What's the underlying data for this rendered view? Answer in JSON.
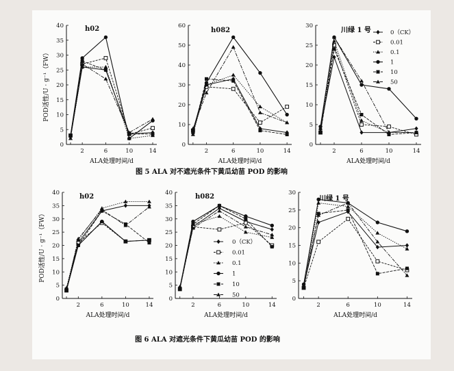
{
  "figures": [
    {
      "caption": "图 5   ALA 对不遮光条件下黄瓜幼苗 POD 的影响",
      "ylabel": "POD活性/U · g⁻¹（FW）",
      "legend_labels": [
        "0（CK）",
        "0.01",
        "0.1",
        "1",
        "10",
        "50"
      ]
    },
    {
      "caption": "图 6   ALA 对遮光条件下黄瓜幼苗 POD 的影响",
      "ylabel": "POD活性/U · g⁻¹（FW）",
      "legend_labels": [
        "0（CK）",
        "0.01",
        "0.1",
        "1",
        "10",
        "50"
      ]
    }
  ],
  "chart_data": [
    {
      "type": "line",
      "figure": 0,
      "title": "h02",
      "xlabel": "ALA处理时间/d",
      "x": [
        0,
        2,
        6,
        10,
        14
      ],
      "ylim": [
        0,
        40
      ],
      "yticks": [
        0,
        5,
        10,
        15,
        20,
        25,
        30,
        35,
        40
      ],
      "series": [
        {
          "name": "0（CK）",
          "marker": "diamond",
          "values": [
            2.5,
            26,
            25,
            3.5,
            4
          ]
        },
        {
          "name": "0.01",
          "marker": "square-open",
          "values": [
            3,
            27,
            29,
            3.5,
            5.5
          ]
        },
        {
          "name": "0.1",
          "marker": "triangle",
          "values": [
            2,
            26,
            26,
            2,
            3
          ]
        },
        {
          "name": "1",
          "marker": "circle",
          "values": [
            3,
            29,
            36,
            2,
            8
          ]
        },
        {
          "name": "10",
          "marker": "square",
          "values": [
            3,
            28,
            25,
            3.5,
            3.5
          ]
        },
        {
          "name": "50",
          "marker": "triangle",
          "values": [
            2,
            27,
            22,
            4,
            8.5
          ]
        }
      ]
    },
    {
      "type": "line",
      "figure": 0,
      "title": "h082",
      "xlabel": "ALA处理时间/d",
      "x": [
        0,
        2,
        6,
        10,
        14
      ],
      "ylim": [
        0,
        60
      ],
      "yticks": [
        0,
        10,
        20,
        30,
        40,
        50,
        60
      ],
      "series": [
        {
          "name": "0（CK）",
          "marker": "diamond",
          "values": [
            6,
            30,
            33,
            8,
            6
          ]
        },
        {
          "name": "0.01",
          "marker": "square-open",
          "values": [
            7,
            29,
            28,
            11,
            19
          ]
        },
        {
          "name": "0.1",
          "marker": "triangle",
          "values": [
            5,
            30,
            35,
            19,
            11
          ]
        },
        {
          "name": "1",
          "marker": "circle",
          "values": [
            7,
            31,
            54,
            36,
            15
          ]
        },
        {
          "name": "10",
          "marker": "square",
          "values": [
            6,
            33,
            32,
            7,
            5
          ]
        },
        {
          "name": "50",
          "marker": "triangle",
          "values": [
            8,
            26,
            49,
            16,
            11
          ]
        }
      ]
    },
    {
      "type": "line",
      "figure": 0,
      "title": "川绿 1 号",
      "xlabel": "ALA处理时间/d",
      "x": [
        0,
        2,
        6,
        10,
        14
      ],
      "ylim": [
        0,
        30
      ],
      "yticks": [
        0,
        5,
        10,
        15,
        20,
        25,
        30
      ],
      "series": [
        {
          "name": "0（CK）",
          "marker": "diamond",
          "values": [
            4,
            22,
            3,
            3,
            4
          ]
        },
        {
          "name": "0.01",
          "marker": "square-open",
          "values": [
            3,
            25,
            5,
            4.5,
            2.5
          ]
        },
        {
          "name": "0.1",
          "marker": "triangle",
          "values": [
            3.5,
            26,
            6,
            3,
            3
          ]
        },
        {
          "name": "1",
          "marker": "circle",
          "values": [
            4.5,
            27,
            15,
            14,
            6.5
          ]
        },
        {
          "name": "10",
          "marker": "square",
          "values": [
            3,
            24,
            7.5,
            2.5,
            3
          ]
        },
        {
          "name": "50",
          "marker": "triangle",
          "values": [
            4,
            27,
            16,
            3,
            3
          ]
        }
      ]
    },
    {
      "type": "line",
      "figure": 1,
      "title": "h02",
      "xlabel": "ALA处理时间/d",
      "x": [
        0,
        2,
        6,
        10,
        14
      ],
      "ylim": [
        0,
        40
      ],
      "yticks": [
        0,
        5,
        10,
        15,
        20,
        25,
        30,
        35,
        40
      ],
      "series": [
        {
          "name": "0（CK）",
          "marker": "diamond",
          "values": [
            3.5,
            21,
            33,
            35,
            35
          ]
        },
        {
          "name": "0.01",
          "marker": "square-open",
          "values": [
            3,
            21,
            28.5,
            21.5,
            22
          ]
        },
        {
          "name": "0.1",
          "marker": "triangle",
          "values": [
            4,
            22,
            34,
            36.5,
            36.5
          ]
        },
        {
          "name": "1",
          "marker": "circle",
          "values": [
            3,
            20,
            29,
            21.5,
            22
          ]
        },
        {
          "name": "10",
          "marker": "square",
          "values": [
            3.5,
            20,
            33,
            28,
            21
          ]
        },
        {
          "name": "50",
          "marker": "triangle",
          "values": [
            3,
            22.5,
            33.5,
            27.5,
            34.5
          ]
        }
      ]
    },
    {
      "type": "line",
      "figure": 1,
      "title": "h082",
      "xlabel": "ALA处理时间/d",
      "x": [
        0,
        2,
        6,
        10,
        14
      ],
      "ylim": [
        0,
        40
      ],
      "yticks": [
        0,
        5,
        10,
        15,
        20,
        25,
        30,
        35,
        40
      ],
      "series": [
        {
          "name": "0（CK）",
          "marker": "diamond",
          "values": [
            4,
            27,
            34,
            29,
            26
          ]
        },
        {
          "name": "0.01",
          "marker": "square-open",
          "values": [
            3.5,
            27,
            26,
            28.5,
            20
          ]
        },
        {
          "name": "0.1",
          "marker": "triangle",
          "values": [
            4,
            28,
            31,
            25,
            23
          ]
        },
        {
          "name": "1",
          "marker": "circle",
          "values": [
            4,
            29,
            35,
            31,
            27.5
          ]
        },
        {
          "name": "10",
          "marker": "square",
          "values": [
            3.5,
            28,
            35,
            30,
            19.5
          ]
        },
        {
          "name": "50",
          "marker": "triangle",
          "values": [
            4.5,
            26.5,
            33,
            27,
            24
          ]
        }
      ]
    },
    {
      "type": "line",
      "figure": 1,
      "title": "川绿 1 号",
      "xlabel": "ALA处理时间/d",
      "x": [
        0,
        2,
        6,
        10,
        14
      ],
      "ylim": [
        0,
        30
      ],
      "yticks": [
        0,
        5,
        10,
        15,
        20,
        25,
        30
      ],
      "series": [
        {
          "name": "0（CK）",
          "marker": "diamond",
          "values": [
            3.5,
            21.5,
            24.5,
            14.5,
            15
          ]
        },
        {
          "name": "0.01",
          "marker": "square-open",
          "values": [
            3,
            16,
            22.5,
            10.5,
            8
          ]
        },
        {
          "name": "0.1",
          "marker": "triangle",
          "values": [
            3,
            27,
            26,
            18.5,
            14
          ]
        },
        {
          "name": "1",
          "marker": "circle",
          "values": [
            4,
            28,
            27,
            21.5,
            19
          ]
        },
        {
          "name": "10",
          "marker": "square",
          "values": [
            3,
            24,
            25,
            7,
            8.5
          ]
        },
        {
          "name": "50",
          "marker": "triangle",
          "values": [
            3.5,
            23.5,
            27,
            16,
            6.5
          ]
        }
      ]
    }
  ]
}
